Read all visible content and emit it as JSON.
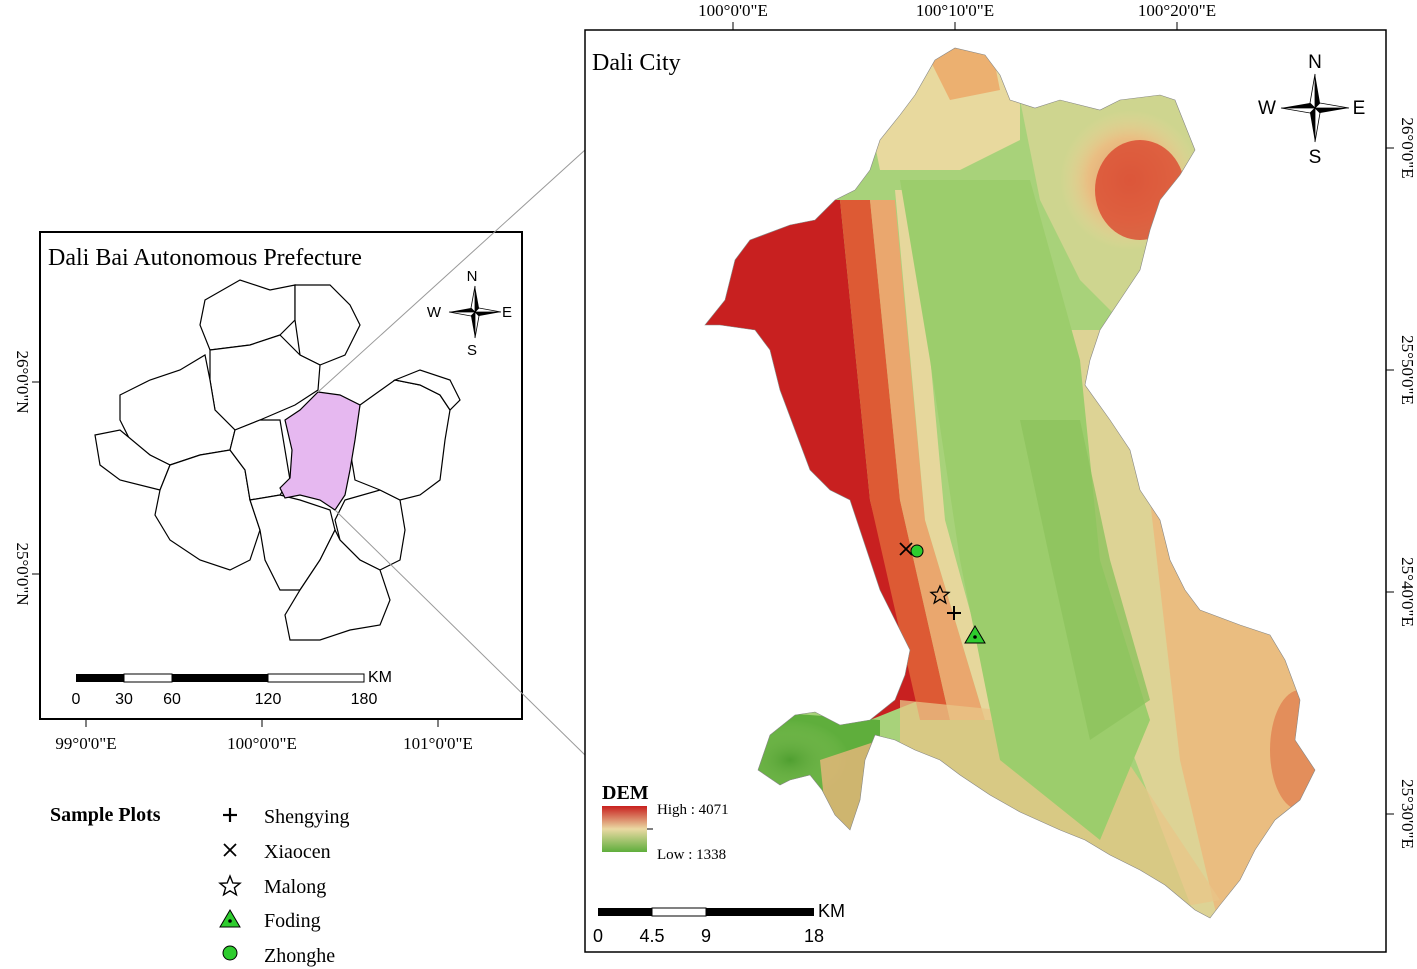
{
  "inset_map": {
    "title": "Dali Bai Autonomous Prefecture",
    "lon_labels": [
      "99°0'0\"E",
      "100°0'0\"E",
      "101°0'0\"E"
    ],
    "lat_labels": [
      "26°0'0\"N",
      "25°0'0\"N"
    ],
    "north_arrow": {
      "n": "N",
      "s": "S",
      "e": "E",
      "w": "W"
    },
    "scale_bar": {
      "ticks": [
        "0",
        "30",
        "60",
        "120",
        "180"
      ],
      "unit": "KM"
    },
    "highlight_color": "#e6b8f0",
    "highlighted_unit": "Dali City"
  },
  "main_map": {
    "title": "Dali City",
    "lon_labels": [
      "100°0'0\"E",
      "100°10'0\"E",
      "100°20'0\"E"
    ],
    "lat_labels": [
      "26°0'0\"E",
      "25°50'0\"E",
      "25°40'0\"E",
      "25°30'0\"E"
    ],
    "north_arrow": {
      "n": "N",
      "s": "S",
      "e": "E",
      "w": "W"
    },
    "scale_bar": {
      "ticks": [
        "0",
        "4.5",
        "9",
        "18"
      ],
      "unit": "KM"
    },
    "dem_legend": {
      "title": "DEM",
      "high_label": "High : 4071",
      "low_label": "Low : 1338",
      "colors": [
        "#c8201e",
        "#ead9a3",
        "#5fae3c"
      ]
    }
  },
  "sample_plots": {
    "title": "Sample Plots",
    "items": [
      {
        "name": "Shengying",
        "symbol": "plus-icon"
      },
      {
        "name": "Xiaocen",
        "symbol": "cross-icon"
      },
      {
        "name": "Malong",
        "symbol": "star-icon"
      },
      {
        "name": "Foding",
        "symbol": "triangle-icon",
        "color": "#2ecc2e"
      },
      {
        "name": "Zhonghe",
        "symbol": "circle-icon",
        "color": "#2ecc2e"
      }
    ]
  }
}
